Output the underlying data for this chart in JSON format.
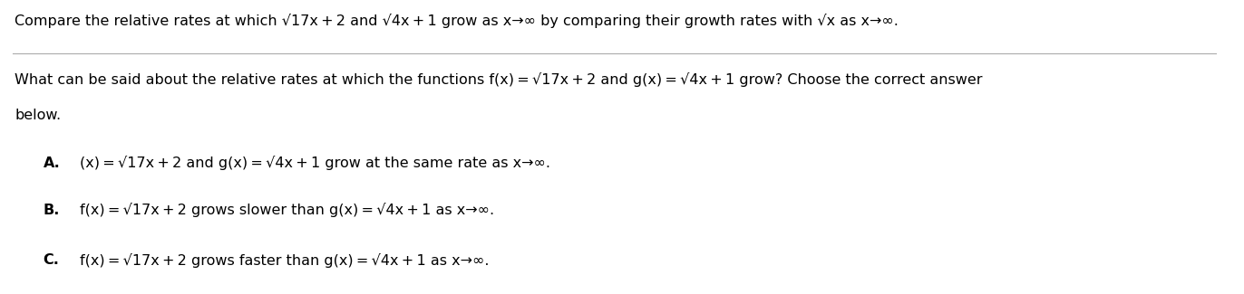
{
  "bg_color": "#ffffff",
  "line_color": "#aaaaaa",
  "text_color": "#000000",
  "bold_color": "#000000",
  "figsize": [
    13.72,
    3.25
  ],
  "dpi": 100,
  "line1_plain": "Compare the relative rates at which ",
  "line1_math1": "√17x + 2",
  "line1_mid": " and ",
  "line1_math2": "√4x + 1",
  "line1_end": " grow as x→∞ by comparing their growth rates with ",
  "line1_math3": "√x",
  "line1_fin": " as x→∞.",
  "line2a": "What can be said about the relative rates at which the functions f(x) = ",
  "line2_math1": "√17x + 2",
  "line2_mid": " and g(x) = ",
  "line2_math2": "√4x + 1",
  "line2_end": " grow? Choose the correct answer",
  "line2b": "below.",
  "opt_A_label": "A.",
  "opt_A_start": " (x) = ",
  "opt_A_math1": "√17x + 2",
  "opt_A_mid": " and g(x) = ",
  "opt_A_math2": "√4x + 1",
  "opt_A_end": " grow at the same rate as x→∞.",
  "opt_B_label": "B.",
  "opt_B_start": " f(x) = ",
  "opt_B_math1": "√17x + 2",
  "opt_B_mid": " grows slower than g(x) = ",
  "opt_B_math2": "√4x + 1",
  "opt_B_end": " as x→∞.",
  "opt_C_label": "C.",
  "opt_C_start": " f(x) = ",
  "opt_C_math1": "√17x + 2",
  "opt_C_mid": " grows faster than g(x) = ",
  "opt_C_math2": "√4x + 1",
  "opt_C_end": " as x→∞.",
  "font_size_top": 11.5,
  "font_size_body": 11.5,
  "font_size_opts": 11.5,
  "font_family": "DejaVu Sans"
}
